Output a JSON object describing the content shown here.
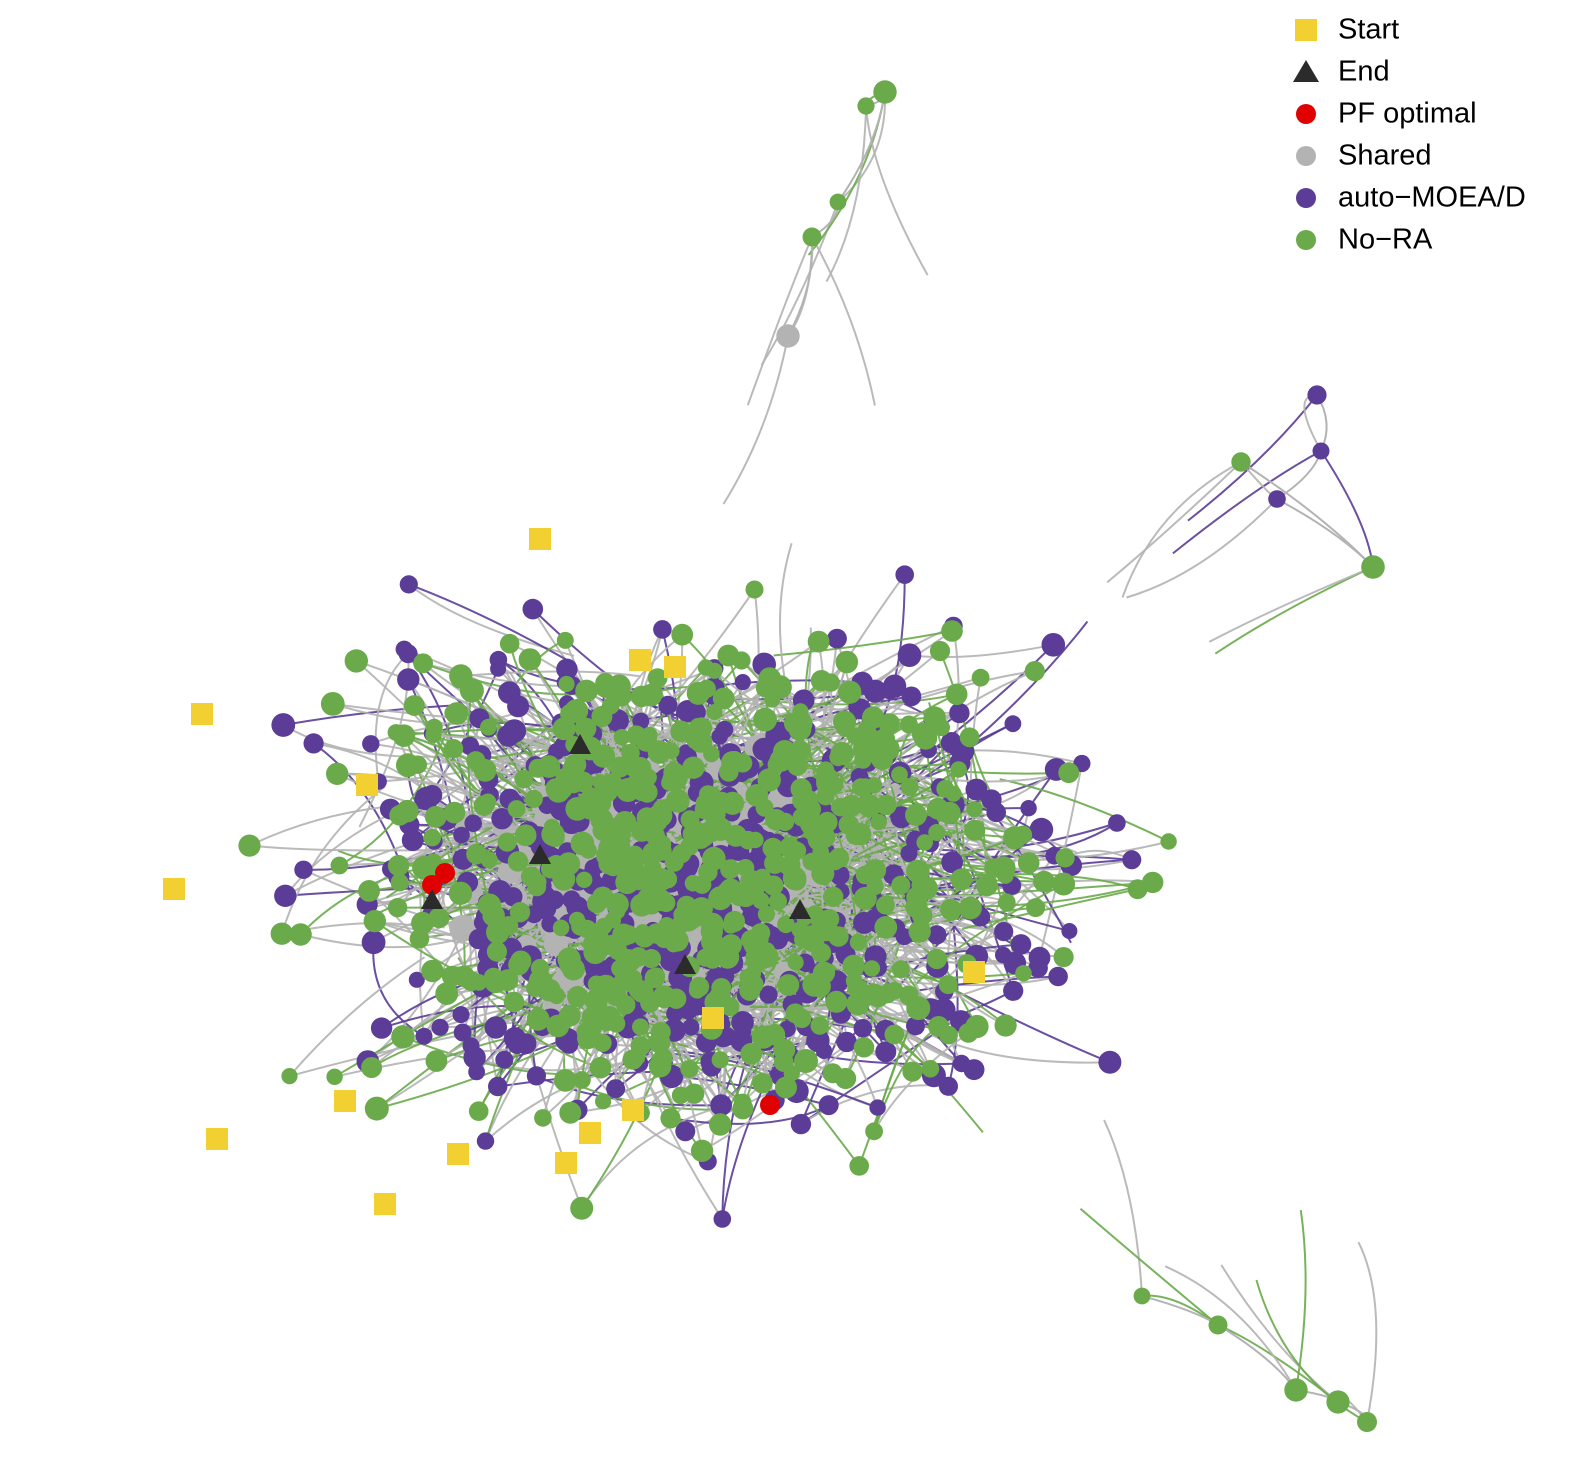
{
  "legend": [
    {
      "label": "Start",
      "shape": "square",
      "color": "#f2d031"
    },
    {
      "label": "End",
      "shape": "triangle",
      "color": "#2b2b2b"
    },
    {
      "label": "PF optimal",
      "shape": "circle",
      "color": "#e00000"
    },
    {
      "label": "Shared",
      "shape": "circle",
      "color": "#b3b3b3"
    },
    {
      "label": "auto−MOEA/D",
      "shape": "circle",
      "color": "#5b3c97"
    },
    {
      "label": "No−RA",
      "shape": "circle",
      "color": "#6aaa4a"
    }
  ]
}
